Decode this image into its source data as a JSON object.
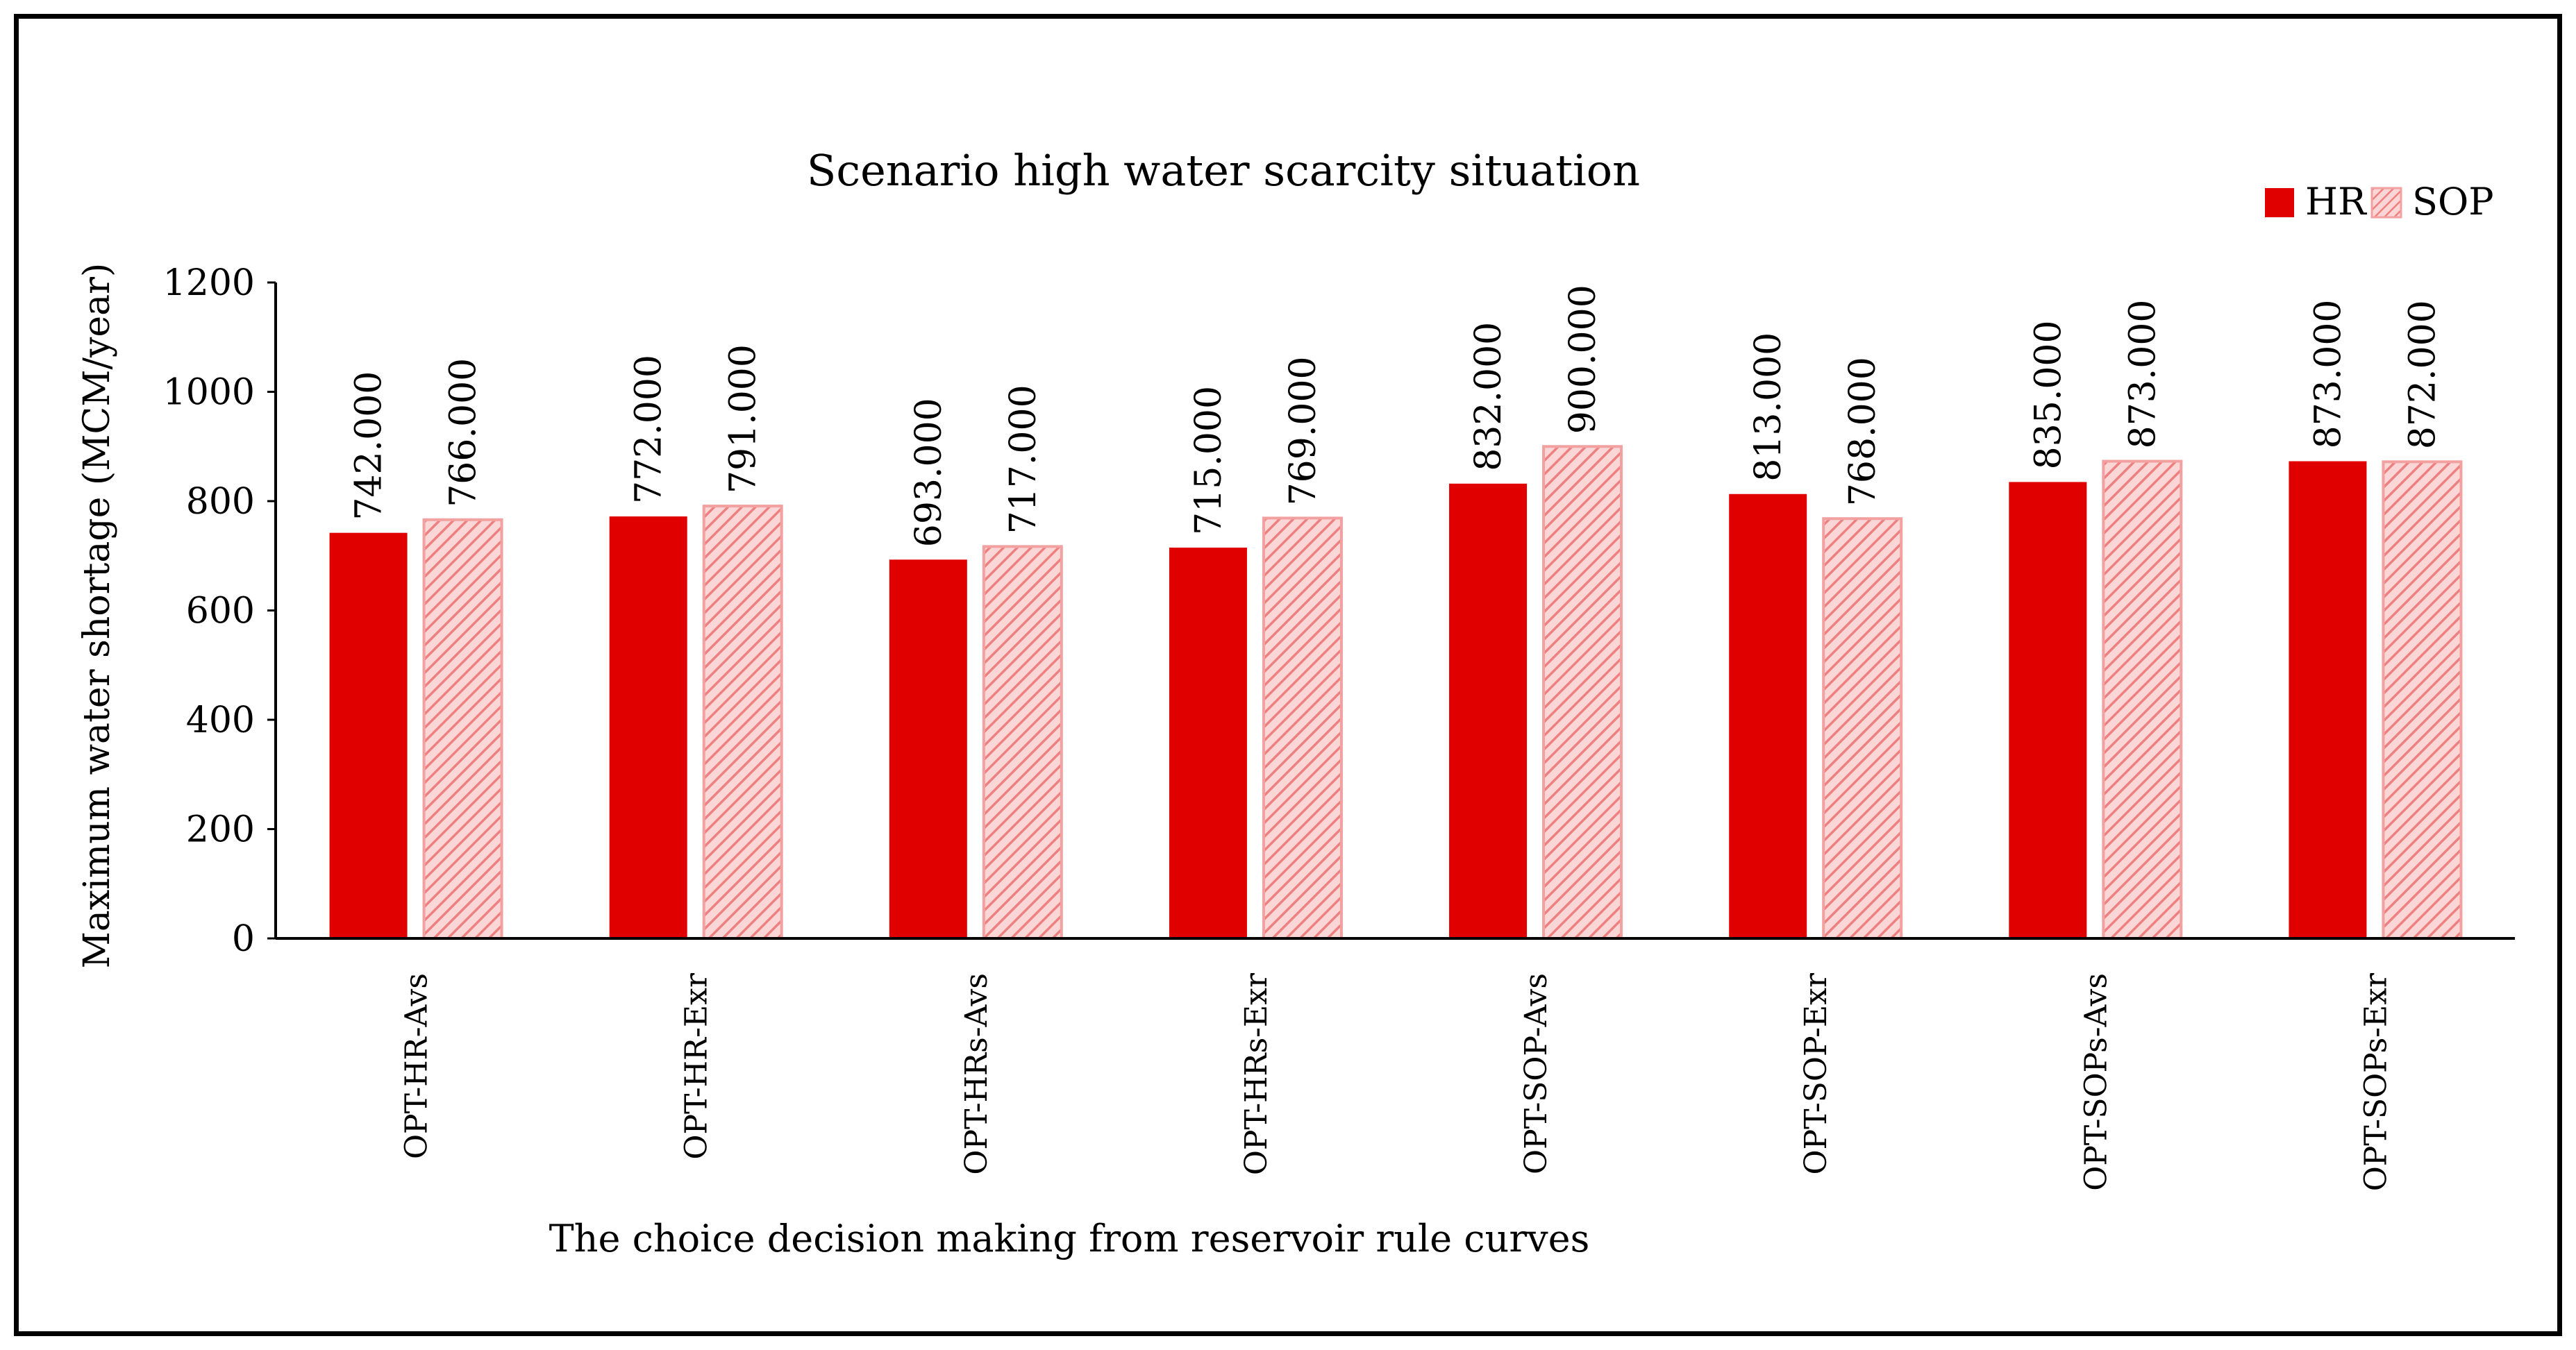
{
  "chart_data": {
    "type": "bar",
    "title": "Scenario high water scarcity situation",
    "xlabel": "The choice decision making from reservoir rule curves",
    "ylabel": "Maximum water shortage  (MCM/year)",
    "ylim": [
      0,
      1200
    ],
    "yticks": [
      0,
      200,
      400,
      600,
      800,
      1000,
      1200
    ],
    "grid": false,
    "legend_position": "top-right",
    "categories": [
      "OPT-HR-Avs",
      "OPT-HR-Exr",
      "OPT-HRs-Avs",
      "OPT-HRs-Exr",
      "OPT-SOP-Avs",
      "OPT-SOP-Exr",
      "OPT-SOPs-Avs",
      "OPT-SOPs-Exr"
    ],
    "series": [
      {
        "name": "HR",
        "style": "solid",
        "color": "#e00000",
        "values": [
          742,
          772,
          693,
          715,
          832,
          813,
          835,
          873
        ],
        "labels": [
          "742.000",
          "772.000",
          "693.000",
          "715.000",
          "832.000",
          "813.000",
          "835.000",
          "873.000"
        ]
      },
      {
        "name": "SOP",
        "style": "hatched",
        "color": "#f4a0a0",
        "values": [
          766,
          791,
          717,
          769,
          900,
          768,
          873,
          872
        ],
        "labels": [
          "766.000",
          "791.000",
          "717.000",
          "769.000",
          "900.000",
          "768.000",
          "873.000",
          "872.000"
        ]
      }
    ]
  }
}
